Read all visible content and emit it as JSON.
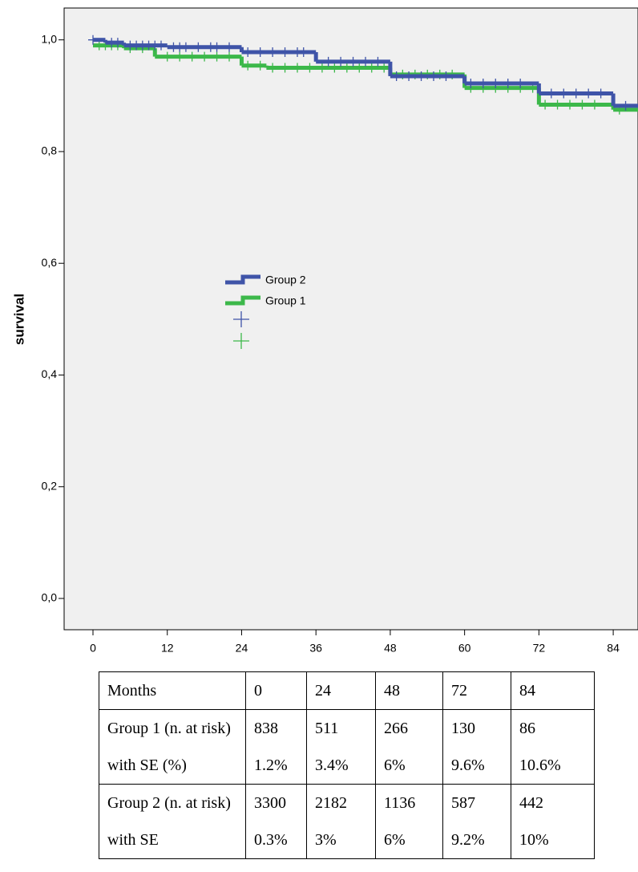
{
  "chart_data": {
    "type": "step",
    "y_label": "survival",
    "xlim": [
      -4.66,
      88
    ],
    "ylim": [
      -0.056,
      1.057
    ],
    "xticks": [
      0,
      12,
      24,
      36,
      48,
      60,
      72,
      84
    ],
    "yticks": [
      {
        "value": 0,
        "label": "0,0"
      },
      {
        "value": 0.2,
        "label": "0,2"
      },
      {
        "value": 0.4,
        "label": "0,4"
      },
      {
        "value": 0.6,
        "label": "0,6"
      },
      {
        "value": 0.8,
        "label": "0,8"
      },
      {
        "value": 1,
        "label": "1,0"
      }
    ],
    "series": [
      {
        "name": "Group 2",
        "color": "#3f54a8",
        "x": [
          0,
          2,
          5,
          12,
          24,
          36,
          48,
          60,
          72,
          84
        ],
        "values": [
          1.0,
          0.995,
          0.99,
          0.987,
          0.978,
          0.961,
          0.935,
          0.922,
          0.904,
          0.882
        ],
        "censored": [
          0,
          3,
          4,
          6,
          7,
          8,
          9,
          10,
          11,
          13,
          14,
          15,
          17,
          19,
          20,
          22,
          25,
          27,
          29,
          31,
          33,
          34,
          38,
          40,
          42,
          44,
          46,
          49,
          51,
          53,
          55,
          57,
          61,
          63,
          65,
          67,
          69,
          74,
          76,
          78,
          80,
          82,
          86
        ]
      },
      {
        "name": "Group 1",
        "color": "#3cb84a",
        "x": [
          0,
          5,
          10,
          24,
          28,
          48,
          60,
          72,
          84
        ],
        "values": [
          0.99,
          0.985,
          0.97,
          0.954,
          0.95,
          0.938,
          0.914,
          0.884,
          0.875
        ],
        "censored": [
          1,
          2,
          3,
          4,
          6,
          8,
          12,
          14,
          16,
          18,
          20,
          22,
          25,
          27,
          29,
          31,
          33,
          35,
          37,
          39,
          41,
          43,
          45,
          47,
          50,
          52,
          54,
          56,
          58,
          61,
          63,
          65,
          67,
          69,
          71,
          73,
          75,
          77,
          79,
          81,
          85
        ]
      }
    ]
  },
  "table": {
    "rows": [
      [
        "Months",
        "0",
        "24",
        "48",
        "72",
        "84"
      ],
      [
        "Group 1 (n. at risk)",
        "838",
        "511",
        "266",
        "130",
        "86"
      ],
      [
        "with SE (%)",
        "1.2%",
        "3.4%",
        "6%",
        "9.6%",
        "10.6%"
      ],
      [
        "Group 2 (n. at risk)",
        "3300",
        "2182",
        "1136",
        "587",
        "442"
      ],
      [
        "with SE",
        "0.3%",
        "3%",
        "6%",
        "9.2%",
        "10%"
      ]
    ]
  }
}
